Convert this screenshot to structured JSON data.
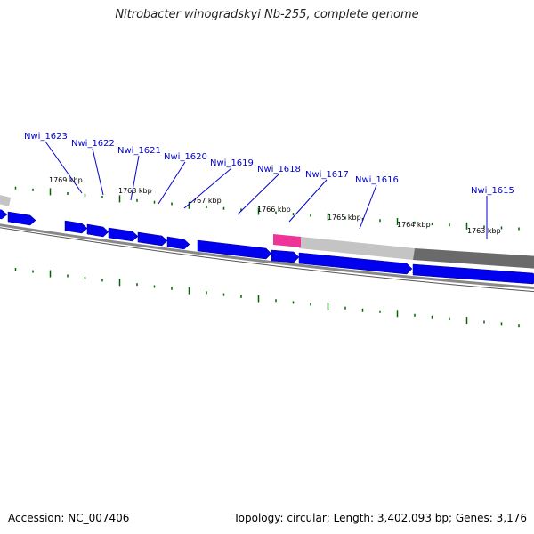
{
  "title": "Nitrobacter winogradskyi Nb-255, complete genome",
  "footer": {
    "accession": "Accession: NC_007406",
    "summary": "Topology: circular; Length: 3,402,093 bp; Genes: 3,176"
  },
  "colors": {
    "gene": "#0000ee",
    "highlight": "#ee3399",
    "tick": "#006600",
    "label_line": "#0000cc",
    "backbone": "#777777",
    "shade_light": "#c4c4c4",
    "shade_dark": "#6a6a6a"
  },
  "kbp_labels": [
    "1769 kbp",
    "1768 kbp",
    "1767 kbp",
    "1766 kbp",
    "1765 kbp",
    "1764 kbp",
    "1763 kbp"
  ],
  "gene_labels": [
    "Nwi_1623",
    "Nwi_1622",
    "Nwi_1621",
    "Nwi_1620",
    "Nwi_1619",
    "Nwi_1618",
    "Nwi_1617",
    "Nwi_1616",
    "Nwi_1615"
  ]
}
